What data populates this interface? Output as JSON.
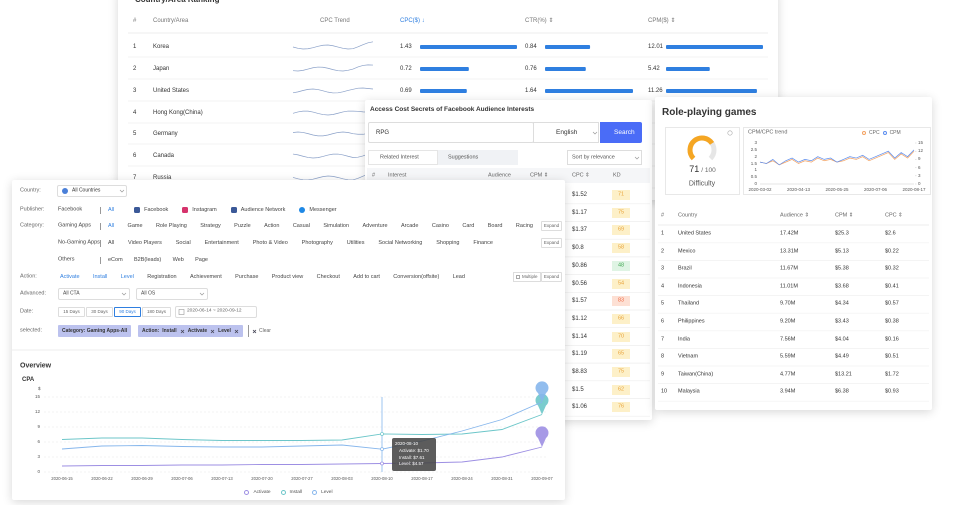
{
  "ranking": {
    "title": "Country/Area Ranking",
    "columns": [
      "#",
      "Country/Area",
      "CPC Trend",
      "CPC($) ↓",
      "CTR(%) ⇕",
      "CPM($) ⇕"
    ],
    "rows": [
      {
        "rank": 1,
        "country": "Korea",
        "cpc": 1.43,
        "ctr": 0.84,
        "cpm": 12.01
      },
      {
        "rank": 2,
        "country": "Japan",
        "cpc": 0.72,
        "ctr": 0.76,
        "cpm": 5.42
      },
      {
        "rank": 3,
        "country": "United States",
        "cpc": 0.69,
        "ctr": 1.64,
        "cpm": 11.26
      },
      {
        "rank": 4,
        "country": "Hong Kong(China)"
      },
      {
        "rank": 5,
        "country": "Germany"
      },
      {
        "rank": 6,
        "country": "Canada"
      },
      {
        "rank": 7,
        "country": "Russia"
      }
    ]
  },
  "interests": {
    "title": "Access Cost Secrets of Facebook Audience Interests",
    "query": "RPG",
    "language": "English",
    "search_button": "Search",
    "tabs": [
      "Related Interest",
      "Suggestions"
    ],
    "sort": "Sort by relevance",
    "columns": [
      "#",
      "Interest",
      "Audience",
      "CPM ⇕",
      "CPC ⇕",
      "KD"
    ],
    "rows": [
      {
        "cpc": "$1.52",
        "kd": 71
      },
      {
        "cpc": "$1.17",
        "kd": 75
      },
      {
        "cpc": "$1.37",
        "kd": 69
      },
      {
        "cpc": "$0.8",
        "kd": 58
      },
      {
        "cpc": "$0.86",
        "kd": 48
      },
      {
        "cpc": "$0.56",
        "kd": 54
      },
      {
        "cpc": "$1.57",
        "kd": 83
      },
      {
        "cpc": "$1.12",
        "kd": 66
      },
      {
        "cpc": "$1.14",
        "kd": 70
      },
      {
        "cpc": "$1.19",
        "kd": 65
      },
      {
        "cpc": "$8.83",
        "kd": 75
      },
      {
        "cpc": "$1.5",
        "kd": 62
      },
      {
        "cpc": "$1.06",
        "kd": 76
      }
    ]
  },
  "role_playing": {
    "title": "Role-playing games",
    "score": 71,
    "score_max": {
      "value": 100,
      "label": "/ 100"
    },
    "score_label": "Difficulty",
    "columns": [
      "#",
      "Country",
      "Audience ⇕",
      "CPM ⇕",
      "CPC ⇕"
    ],
    "rows": [
      [
        1,
        "United States",
        "17.42M",
        "$25.3",
        "$2.6"
      ],
      [
        2,
        "Mexico",
        "13.31M",
        "$5.13",
        "$0.22"
      ],
      [
        3,
        "Brazil",
        "11.67M",
        "$5.38",
        "$0.32"
      ],
      [
        4,
        "Indonesia",
        "11.01M",
        "$3.68",
        "$0.41"
      ],
      [
        5,
        "Thailand",
        "9.70M",
        "$4.34",
        "$0.57"
      ],
      [
        6,
        "Philippines",
        "9.20M",
        "$3.43",
        "$0.38"
      ],
      [
        7,
        "India",
        "7.56M",
        "$4.04",
        "$0.16"
      ],
      [
        8,
        "Vietnam",
        "5.59M",
        "$4.49",
        "$0.51"
      ],
      [
        9,
        "Taiwan(China)",
        "4.77M",
        "$13.21",
        "$1.72"
      ],
      [
        10,
        "Malaysia",
        "3.94M",
        "$6.38",
        "$0.93"
      ]
    ]
  },
  "filters": {
    "country": {
      "label": "Country:",
      "value": "All Countries"
    },
    "publisher": {
      "label": "Publisher:",
      "group": "Facebook",
      "options": [
        "All",
        "Facebook",
        "Instagram",
        "Audience Network",
        "Messenger"
      ],
      "active": [
        0
      ]
    },
    "category": {
      "label": "Category:",
      "rows": [
        {
          "group": "Gaming Apps",
          "options": [
            "All",
            "Game",
            "Role Playing",
            "Strategy",
            "Puzzle",
            "Action",
            "Casual",
            "Simulation",
            "Adventure",
            "Arcade",
            "Casino",
            "Card",
            "Board",
            "Racing"
          ],
          "more": "Expand",
          "active": [
            0
          ]
        },
        {
          "group": "No-Gaming Apps",
          "options": [
            "All",
            "Video Players",
            "Social",
            "Entertainment",
            "Photo & Video",
            "Photography",
            "Utilities",
            "Social Networking",
            "Shopping",
            "Finance"
          ],
          "more": "Expand",
          "active": []
        },
        {
          "group": "Others",
          "options": [
            "eCom",
            "B2B(leads)",
            "Web",
            "Page"
          ],
          "active": []
        }
      ]
    },
    "action": {
      "label": "Action:",
      "options": [
        "Activate",
        "Install",
        "Level",
        "Registration",
        "Achievement",
        "Purchase",
        "Product view",
        "Checkout",
        "Add to cart",
        "Conversion(offsite)",
        "Lead"
      ],
      "active": [
        0,
        1,
        2
      ],
      "multiple": "Multiple",
      "more": "Expand"
    },
    "advanced": {
      "label": "Advanced:",
      "selects": [
        "All CTA",
        "All OS"
      ]
    },
    "date": {
      "label": "Date:",
      "options": [
        "15 Days",
        "30 Days",
        "90 Days",
        "180 Days"
      ],
      "active": [
        2
      ],
      "range": "2020-06-14 ~ 2020-09-12"
    },
    "selected": {
      "label": "selected:",
      "category_tag": "Category: Gaming Apps-All",
      "action_label": "Action:",
      "actions": [
        "Install",
        "Activate",
        "Level"
      ],
      "clear": "Clear"
    }
  },
  "chart_data": [
    {
      "type": "line",
      "title": "Overview",
      "y_label": "CPA",
      "y_unit": "$",
      "categories": [
        "2020-06-15",
        "2020-06-22",
        "2020-06-29",
        "2020-07-06",
        "2020-07-13",
        "2020-07-20",
        "2020-07-27",
        "2020-08-03",
        "2020-08-10",
        "2020-08-17",
        "2020-08-24",
        "2020-08-31",
        "2020-09-07"
      ],
      "series": [
        {
          "name": "Activate",
          "color": "#9d8fe3",
          "values": [
            1.2,
            1.3,
            1.3,
            1.4,
            1.4,
            1.5,
            1.5,
            1.6,
            1.7,
            1.8,
            2.0,
            3.0,
            5.0
          ]
        },
        {
          "name": "Install",
          "color": "#6cc6c9",
          "values": [
            6.5,
            6.8,
            6.8,
            6.5,
            6.3,
            6.3,
            6.3,
            6.4,
            7.61,
            7.5,
            7.6,
            8.5,
            11.5
          ]
        },
        {
          "name": "Level",
          "color": "#86b6ec",
          "values": [
            4.6,
            5.2,
            5.3,
            5.1,
            5.0,
            5.0,
            5.2,
            5.4,
            4.57,
            6.2,
            8.2,
            10.5,
            14.0
          ]
        }
      ],
      "ylim": [
        0,
        15
      ],
      "yticks": [
        0,
        3,
        6,
        9,
        12,
        15
      ],
      "grid": true,
      "tooltip": {
        "title": "2020-08-10",
        "lines": [
          "Activate: $1.70",
          "Install: $7.61",
          "Level: $4.57"
        ]
      }
    },
    {
      "type": "line",
      "title": "CPM/CPC trend",
      "categories": [
        "2020-03-02",
        null,
        null,
        null,
        null,
        null,
        "2020-04-13",
        null,
        null,
        null,
        null,
        null,
        "2020-05-25",
        null,
        null,
        null,
        null,
        null,
        "2020-07-06",
        null,
        null,
        null,
        null,
        null,
        "2020-08-17"
      ],
      "series": [
        {
          "name": "CPC",
          "color": "#f4a261",
          "values": [
            1.6,
            1.5,
            1.7,
            1.4,
            1.6,
            1.8,
            1.5,
            1.7,
            1.6,
            1.9,
            1.7,
            1.8,
            1.6,
            1.7,
            1.9,
            1.8,
            2.0,
            1.7,
            1.9,
            2.1,
            2.3,
            1.8,
            2.2,
            1.9,
            2.4
          ]
        },
        {
          "name": "CPM",
          "color": "#5b8def",
          "axis": "y2",
          "values": [
            8,
            7.5,
            9,
            7,
            8.5,
            9.5,
            8,
            9,
            8.5,
            10,
            9,
            9.5,
            8,
            9,
            10,
            9.5,
            10.5,
            9,
            10,
            11,
            12,
            9.5,
            11.5,
            10,
            12.5
          ]
        }
      ],
      "ylim": [
        0,
        3
      ],
      "yticks": [
        0,
        0.5,
        1,
        1.5,
        2,
        2.5,
        3
      ],
      "y2lim": [
        0,
        15
      ],
      "y2ticks": [
        0,
        3,
        6,
        9,
        12,
        15
      ]
    }
  ]
}
